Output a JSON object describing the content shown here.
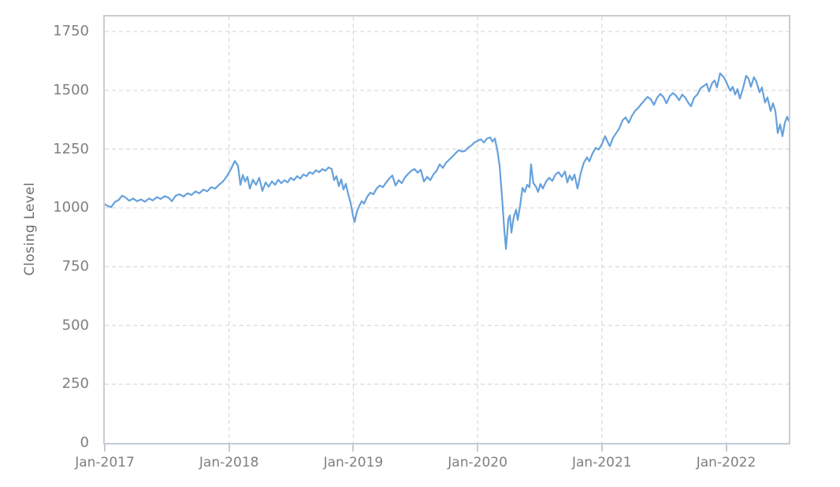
{
  "chart_data": {
    "type": "line",
    "title": "",
    "xlabel": "",
    "ylabel": "Closing Level",
    "legend": "none",
    "grid": "dashed",
    "xlim": [
      2017.0,
      2022.504
    ],
    "ylim": [
      0,
      1814
    ],
    "x_tick_values": [
      2017,
      2018,
      2019,
      2020,
      2021,
      2022
    ],
    "x_tick_labels": [
      "Jan-2017",
      "Jan-2018",
      "Jan-2019",
      "Jan-2020",
      "Jan-2021",
      "Jan-2022"
    ],
    "y_tick_values": [
      0,
      250,
      500,
      750,
      1000,
      1250,
      1500,
      1750
    ],
    "y_tick_labels": [
      "0",
      "250",
      "500",
      "750",
      "1000",
      "1250",
      "1500",
      "1750"
    ],
    "y_gridline_values": [
      250,
      500,
      750,
      1000,
      1250,
      1500,
      1750
    ],
    "x_gridline_values": [
      2018,
      2019,
      2020,
      2021,
      2022
    ],
    "colors": {
      "line": "#66a1dc",
      "grid": "#dedede",
      "plot_border": "#cccccc",
      "axis_line": "#c3cbda",
      "tick_mark": "#c3cbda",
      "tick_label": "#7f7f7f",
      "axis_title": "#6e6e6e",
      "background": "#ffffff"
    },
    "series": [
      {
        "name": "Closing Level",
        "points": [
          [
            2017.0,
            1015
          ],
          [
            2017.025,
            1008
          ],
          [
            2017.051,
            1003
          ],
          [
            2017.082,
            1025
          ],
          [
            2017.114,
            1035
          ],
          [
            2017.139,
            1052
          ],
          [
            2017.165,
            1045
          ],
          [
            2017.197,
            1030
          ],
          [
            2017.228,
            1040
          ],
          [
            2017.26,
            1028
          ],
          [
            2017.292,
            1036
          ],
          [
            2017.323,
            1026
          ],
          [
            2017.355,
            1040
          ],
          [
            2017.387,
            1032
          ],
          [
            2017.419,
            1046
          ],
          [
            2017.45,
            1038
          ],
          [
            2017.482,
            1050
          ],
          [
            2017.514,
            1043
          ],
          [
            2017.539,
            1028
          ],
          [
            2017.571,
            1052
          ],
          [
            2017.602,
            1058
          ],
          [
            2017.634,
            1048
          ],
          [
            2017.666,
            1062
          ],
          [
            2017.698,
            1055
          ],
          [
            2017.729,
            1070
          ],
          [
            2017.761,
            1062
          ],
          [
            2017.793,
            1078
          ],
          [
            2017.824,
            1070
          ],
          [
            2017.856,
            1088
          ],
          [
            2017.888,
            1082
          ],
          [
            2017.919,
            1098
          ],
          [
            2017.951,
            1112
          ],
          [
            2017.983,
            1135
          ],
          [
            2018.015,
            1165
          ],
          [
            2018.046,
            1200
          ],
          [
            2018.072,
            1178
          ],
          [
            2018.091,
            1098
          ],
          [
            2018.11,
            1140
          ],
          [
            2018.129,
            1112
          ],
          [
            2018.148,
            1132
          ],
          [
            2018.167,
            1082
          ],
          [
            2018.192,
            1120
          ],
          [
            2018.217,
            1098
          ],
          [
            2018.243,
            1128
          ],
          [
            2018.268,
            1072
          ],
          [
            2018.294,
            1108
          ],
          [
            2018.319,
            1090
          ],
          [
            2018.344,
            1112
          ],
          [
            2018.37,
            1098
          ],
          [
            2018.395,
            1120
          ],
          [
            2018.42,
            1105
          ],
          [
            2018.446,
            1118
          ],
          [
            2018.471,
            1108
          ],
          [
            2018.496,
            1128
          ],
          [
            2018.522,
            1118
          ],
          [
            2018.547,
            1135
          ],
          [
            2018.573,
            1125
          ],
          [
            2018.598,
            1142
          ],
          [
            2018.623,
            1135
          ],
          [
            2018.648,
            1152
          ],
          [
            2018.674,
            1145
          ],
          [
            2018.699,
            1160
          ],
          [
            2018.725,
            1152
          ],
          [
            2018.75,
            1165
          ],
          [
            2018.776,
            1158
          ],
          [
            2018.801,
            1172
          ],
          [
            2018.826,
            1165
          ],
          [
            2018.845,
            1118
          ],
          [
            2018.864,
            1135
          ],
          [
            2018.883,
            1092
          ],
          [
            2018.902,
            1122
          ],
          [
            2018.921,
            1078
          ],
          [
            2018.94,
            1102
          ],
          [
            2018.959,
            1058
          ],
          [
            2018.978,
            1022
          ],
          [
            2018.997,
            968
          ],
          [
            2019.01,
            940
          ],
          [
            2019.029,
            985
          ],
          [
            2019.048,
            1008
          ],
          [
            2019.067,
            1028
          ],
          [
            2019.086,
            1018
          ],
          [
            2019.112,
            1048
          ],
          [
            2019.137,
            1065
          ],
          [
            2019.162,
            1058
          ],
          [
            2019.187,
            1082
          ],
          [
            2019.213,
            1095
          ],
          [
            2019.238,
            1088
          ],
          [
            2019.264,
            1108
          ],
          [
            2019.289,
            1125
          ],
          [
            2019.314,
            1138
          ],
          [
            2019.34,
            1095
          ],
          [
            2019.365,
            1118
          ],
          [
            2019.39,
            1105
          ],
          [
            2019.416,
            1130
          ],
          [
            2019.441,
            1145
          ],
          [
            2019.467,
            1158
          ],
          [
            2019.492,
            1165
          ],
          [
            2019.517,
            1150
          ],
          [
            2019.543,
            1162
          ],
          [
            2019.568,
            1112
          ],
          [
            2019.594,
            1132
          ],
          [
            2019.619,
            1118
          ],
          [
            2019.644,
            1142
          ],
          [
            2019.67,
            1158
          ],
          [
            2019.695,
            1185
          ],
          [
            2019.72,
            1170
          ],
          [
            2019.746,
            1192
          ],
          [
            2019.771,
            1205
          ],
          [
            2019.797,
            1218
          ],
          [
            2019.822,
            1232
          ],
          [
            2019.847,
            1245
          ],
          [
            2019.873,
            1240
          ],
          [
            2019.898,
            1242
          ],
          [
            2019.924,
            1256
          ],
          [
            2019.949,
            1265
          ],
          [
            2019.974,
            1278
          ],
          [
            2020.0,
            1285
          ],
          [
            2020.025,
            1292
          ],
          [
            2020.051,
            1278
          ],
          [
            2020.076,
            1295
          ],
          [
            2020.101,
            1300
          ],
          [
            2020.12,
            1282
          ],
          [
            2020.139,
            1295
          ],
          [
            2020.158,
            1248
          ],
          [
            2020.177,
            1180
          ],
          [
            2020.196,
            1050
          ],
          [
            2020.215,
            905
          ],
          [
            2020.228,
            825
          ],
          [
            2020.247,
            952
          ],
          [
            2020.26,
            968
          ],
          [
            2020.272,
            895
          ],
          [
            2020.291,
            962
          ],
          [
            2020.31,
            992
          ],
          [
            2020.323,
            948
          ],
          [
            2020.342,
            1008
          ],
          [
            2020.361,
            1085
          ],
          [
            2020.38,
            1068
          ],
          [
            2020.399,
            1098
          ],
          [
            2020.418,
            1088
          ],
          [
            2020.43,
            1185
          ],
          [
            2020.449,
            1105
          ],
          [
            2020.468,
            1092
          ],
          [
            2020.487,
            1068
          ],
          [
            2020.506,
            1102
          ],
          [
            2020.525,
            1082
          ],
          [
            2020.551,
            1112
          ],
          [
            2020.576,
            1128
          ],
          [
            2020.601,
            1115
          ],
          [
            2020.627,
            1142
          ],
          [
            2020.652,
            1152
          ],
          [
            2020.677,
            1132
          ],
          [
            2020.703,
            1155
          ],
          [
            2020.722,
            1108
          ],
          [
            2020.741,
            1138
          ],
          [
            2020.76,
            1118
          ],
          [
            2020.779,
            1142
          ],
          [
            2020.804,
            1082
          ],
          [
            2020.83,
            1148
          ],
          [
            2020.855,
            1192
          ],
          [
            2020.88,
            1215
          ],
          [
            2020.899,
            1198
          ],
          [
            2020.925,
            1232
          ],
          [
            2020.95,
            1255
          ],
          [
            2020.975,
            1248
          ],
          [
            2021.001,
            1272
          ],
          [
            2021.026,
            1305
          ],
          [
            2021.045,
            1282
          ],
          [
            2021.064,
            1262
          ],
          [
            2021.09,
            1298
          ],
          [
            2021.115,
            1318
          ],
          [
            2021.14,
            1338
          ],
          [
            2021.166,
            1372
          ],
          [
            2021.191,
            1385
          ],
          [
            2021.216,
            1362
          ],
          [
            2021.242,
            1392
          ],
          [
            2021.267,
            1412
          ],
          [
            2021.292,
            1425
          ],
          [
            2021.318,
            1442
          ],
          [
            2021.343,
            1458
          ],
          [
            2021.368,
            1472
          ],
          [
            2021.394,
            1462
          ],
          [
            2021.419,
            1438
          ],
          [
            2021.444,
            1468
          ],
          [
            2021.47,
            1485
          ],
          [
            2021.495,
            1472
          ],
          [
            2021.52,
            1445
          ],
          [
            2021.546,
            1475
          ],
          [
            2021.571,
            1488
          ],
          [
            2021.596,
            1478
          ],
          [
            2021.622,
            1458
          ],
          [
            2021.647,
            1482
          ],
          [
            2021.672,
            1468
          ],
          [
            2021.698,
            1445
          ],
          [
            2021.717,
            1432
          ],
          [
            2021.742,
            1468
          ],
          [
            2021.767,
            1482
          ],
          [
            2021.793,
            1508
          ],
          [
            2021.818,
            1518
          ],
          [
            2021.843,
            1528
          ],
          [
            2021.862,
            1495
          ],
          [
            2021.888,
            1532
          ],
          [
            2021.907,
            1542
          ],
          [
            2021.926,
            1512
          ],
          [
            2021.951,
            1572
          ],
          [
            2021.977,
            1558
          ],
          [
            2021.996,
            1542
          ],
          [
            2022.015,
            1518
          ],
          [
            2022.034,
            1498
          ],
          [
            2022.053,
            1515
          ],
          [
            2022.072,
            1482
          ],
          [
            2022.091,
            1505
          ],
          [
            2022.11,
            1465
          ],
          [
            2022.136,
            1510
          ],
          [
            2022.161,
            1562
          ],
          [
            2022.18,
            1550
          ],
          [
            2022.199,
            1515
          ],
          [
            2022.224,
            1556
          ],
          [
            2022.243,
            1538
          ],
          [
            2022.269,
            1492
          ],
          [
            2022.288,
            1512
          ],
          [
            2022.313,
            1448
          ],
          [
            2022.332,
            1470
          ],
          [
            2022.358,
            1412
          ],
          [
            2022.377,
            1445
          ],
          [
            2022.396,
            1412
          ],
          [
            2022.415,
            1318
          ],
          [
            2022.434,
            1355
          ],
          [
            2022.453,
            1305
          ],
          [
            2022.472,
            1362
          ],
          [
            2022.491,
            1388
          ],
          [
            2022.504,
            1370
          ]
        ]
      }
    ]
  }
}
